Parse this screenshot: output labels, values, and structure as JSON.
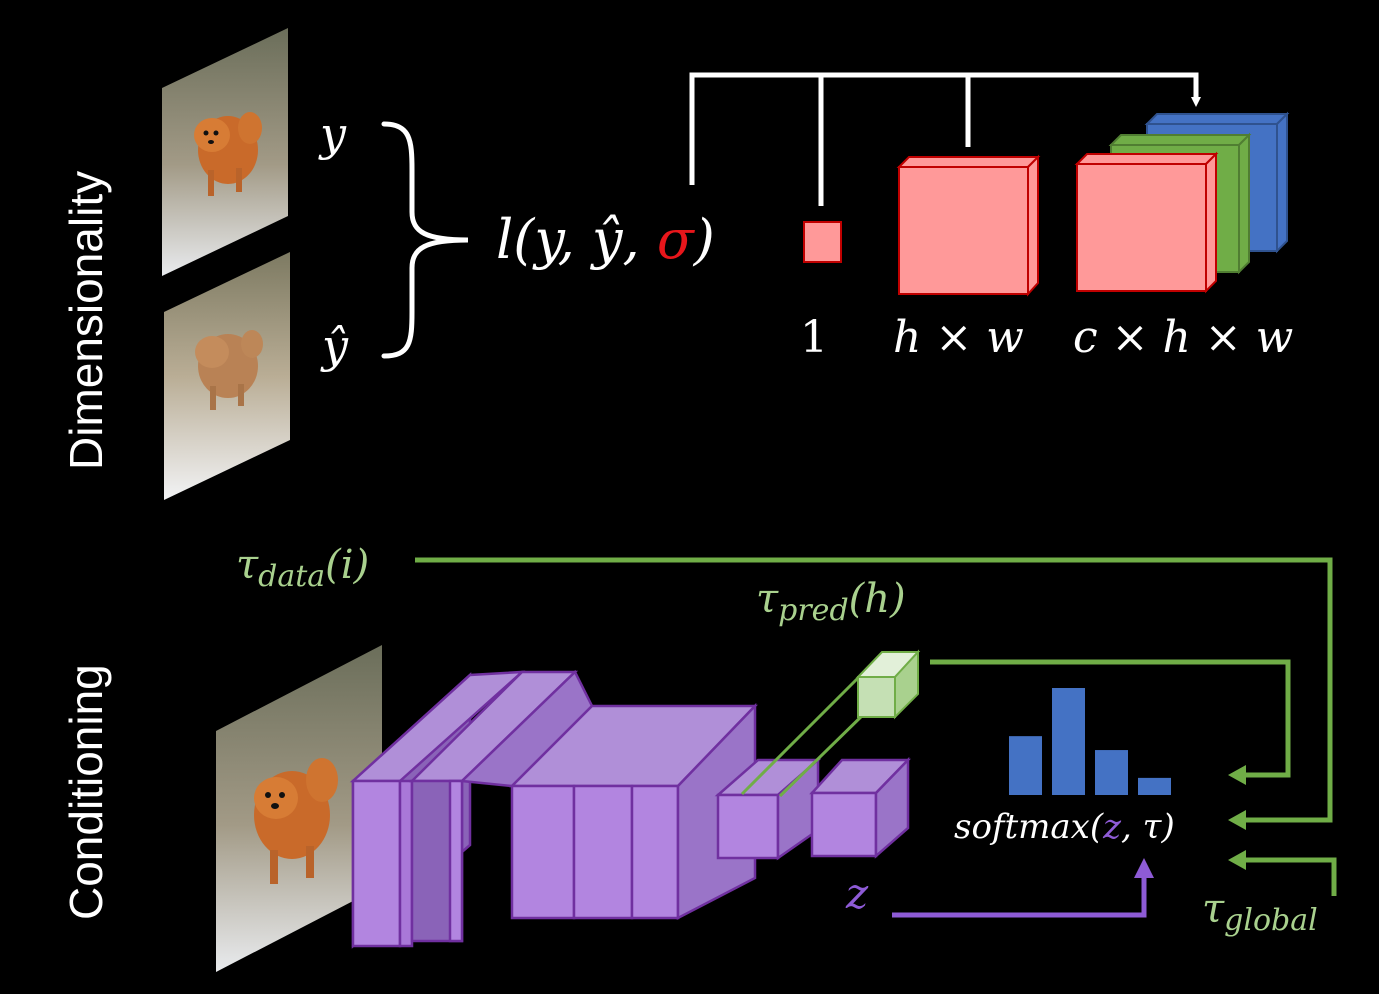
{
  "sections": {
    "top_label": "Dimensionality",
    "bottom_label": "Conditioning"
  },
  "dimensionality": {
    "y_label": "y",
    "yhat_label": "ŷ",
    "loss": {
      "prefix": "l(y, ŷ, ",
      "sigma": "σ",
      "suffix": ")"
    },
    "sizes": [
      "1",
      "h × w",
      "c × h × w"
    ]
  },
  "conditioning": {
    "tau_data": {
      "base": "τ",
      "sub": "data",
      "arg": "(i)"
    },
    "tau_pred": {
      "base": "τ",
      "sub": "pred",
      "arg": "(h)"
    },
    "tau_global": {
      "base": "τ",
      "sub": "global"
    },
    "z_label": "z",
    "softmax": {
      "prefix": "softmax(",
      "z": "z",
      "mid": ", τ",
      "suffix": ")"
    },
    "histogram_values": [
      0.55,
      1.0,
      0.42,
      0.16
    ]
  },
  "colors": {
    "sigma": "#e8161b",
    "green": "#70ad47",
    "green_text": "#a9d18e",
    "purple": "#7030a0",
    "purple_text": "#8e5bd6",
    "red_box": "#ff9999",
    "green_box": "#70ad47",
    "blue_box": "#4472c4",
    "hist_bar": "#4472c4"
  }
}
